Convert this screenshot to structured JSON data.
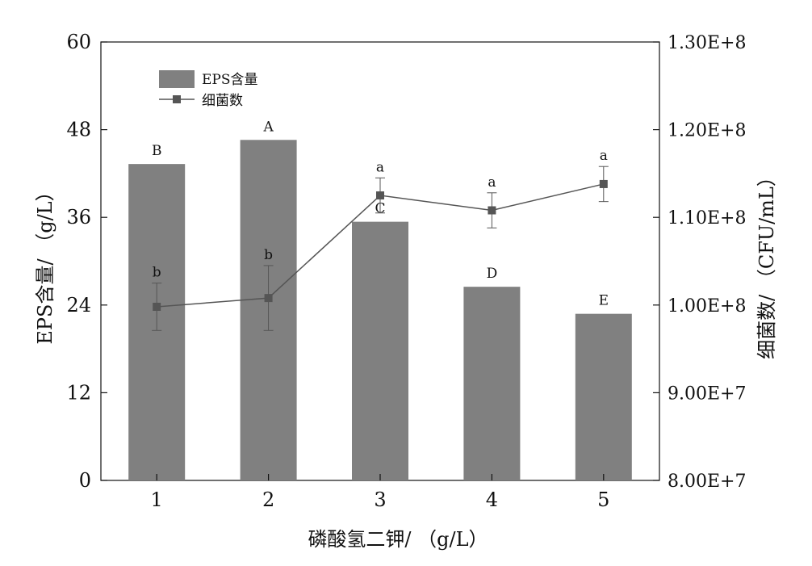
{
  "chart_data": {
    "type": "bar",
    "categories": [
      "1",
      "2",
      "3",
      "4",
      "5"
    ],
    "xlabel": "磷酸氢二钾/ （g/L）",
    "ylabel": "EPS含量/ （g/L）",
    "ylabel_right": "细菌数/ （CFU/mL）",
    "ylim": [
      0,
      60
    ],
    "yticks": [
      0,
      12,
      24,
      36,
      48,
      60
    ],
    "ylim_right": [
      80000000,
      130000000
    ],
    "yticks_right": [
      "8.00E+7",
      "9.00E+7",
      "1.00E+8",
      "1.10E+8",
      "1.20E+8",
      "1.30E+8"
    ],
    "legend_position": "top-left",
    "grid": false,
    "series": [
      {
        "name": "EPS含量",
        "kind": "bar",
        "axis": "left",
        "color": "#808080",
        "values": [
          43.3,
          46.6,
          35.4,
          26.5,
          22.8
        ],
        "errors": [
          0,
          0,
          0,
          0,
          0
        ],
        "labels": [
          "B",
          "A",
          "C",
          "D",
          "E"
        ]
      },
      {
        "name": "细菌数",
        "kind": "line",
        "axis": "right",
        "color": "#555555",
        "values": [
          99800000,
          100800000,
          112500000,
          110800000,
          113800000
        ],
        "errors": [
          2700000,
          3700000,
          2000000,
          2000000,
          2000000
        ],
        "labels": [
          "b",
          "b",
          "a",
          "a",
          "a"
        ]
      }
    ]
  }
}
